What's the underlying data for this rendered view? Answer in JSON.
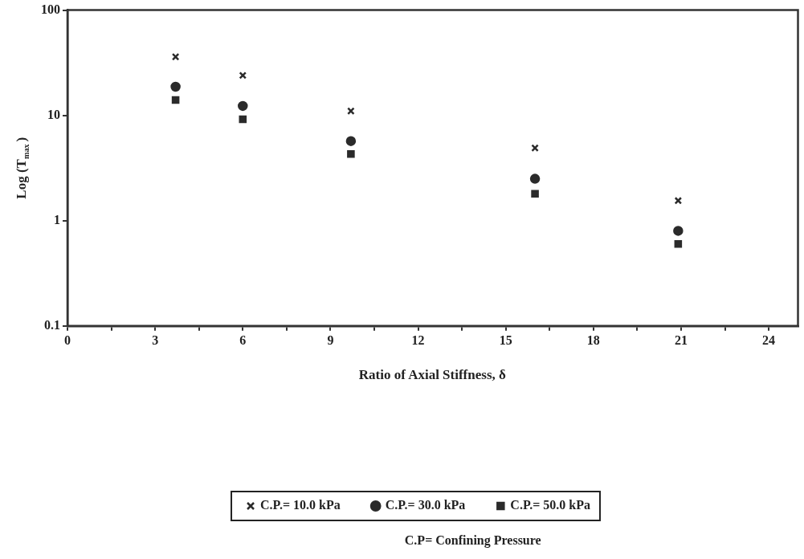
{
  "chart_data": {
    "type": "scatter",
    "xlabel": "Ratio of Axial Stiffness, δ",
    "ylabel": "Log (T$_{max}$)",
    "x": [
      3.7,
      6,
      9.7,
      16,
      20.9
    ],
    "series": [
      {
        "name": "C.P.= 10.0 kPa",
        "color": "#2b2b2b",
        "marker": "cross",
        "values": [
          36,
          24,
          11,
          4.9,
          1.55
        ]
      },
      {
        "name": "C.P.= 30.0 kPa",
        "color": "#2b2b2b",
        "marker": "circle",
        "values": [
          18.7,
          12.3,
          5.7,
          2.5,
          0.8
        ]
      },
      {
        "name": "C.P.= 50.0 kPa",
        "color": "#2b2b2b",
        "marker": "square",
        "values": [
          14,
          9.2,
          4.3,
          1.8,
          0.6
        ]
      }
    ],
    "log": "y",
    "xlim": [
      0,
      25
    ],
    "ylim": [
      0.1,
      100
    ],
    "xticks": [
      0,
      {
        "value": 1.5,
        "label": null
      },
      3,
      {
        "value": 4.5,
        "label": null
      },
      6,
      {
        "value": 7.5,
        "label": null
      },
      9,
      {
        "value": 10.5,
        "label": null
      },
      12,
      {
        "value": 13.5,
        "label": null
      },
      15,
      {
        "value": 16.5,
        "label": null
      },
      18,
      {
        "value": 19.5,
        "label": null
      },
      21,
      {
        "value": 22.5,
        "label": null
      },
      24
    ],
    "yticks": [
      0.1,
      1,
      10,
      100
    ],
    "grid": false,
    "legend": "bottom",
    "annotations": [
      "C.P= Confining Pressure"
    ]
  }
}
